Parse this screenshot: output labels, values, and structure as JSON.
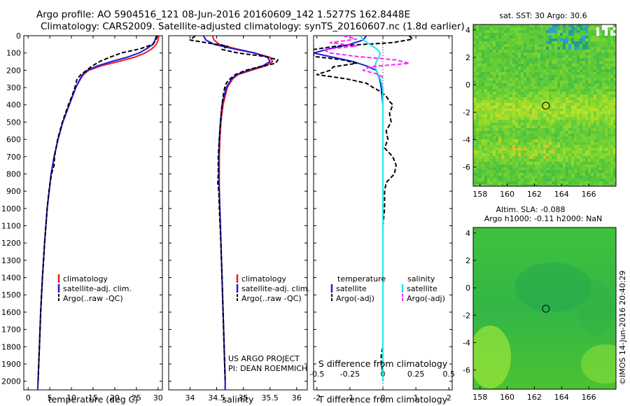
{
  "header": {
    "line1": "Argo profile: AO 5904516_121 08-Jun-2016 20160609_142 1.5277S 162.8448E",
    "line2": "Climatology: CARS2009. Satellite-adjusted climatology: synTS_20160607.nc (1.8d earlier)"
  },
  "colors": {
    "climatology": "#ee1c1c",
    "satellite": "#1a1ae6",
    "argo": "#000000",
    "satellite_salinity": "#20e6e6",
    "argo_salinity": "#ff22ff"
  },
  "chart_data": [
    {
      "type": "line",
      "id": "temperature_profile",
      "xlabel": "temperature (deg C)",
      "ylabel": "",
      "xlim": [
        -1,
        31
      ],
      "ylim": [
        2050,
        0
      ],
      "xticks": [
        "0",
        "5",
        "10",
        "15",
        "20",
        "25",
        "30"
      ],
      "yticks": [
        "0",
        "100",
        "200",
        "300",
        "400",
        "500",
        "600",
        "700",
        "800",
        "900",
        "1000",
        "1100",
        "1200",
        "1300",
        "1400",
        "1500",
        "1600",
        "1700",
        "1800",
        "1900",
        "2000"
      ],
      "legend": [
        "climatology",
        "satellite-adj. clim.",
        "Argo(..raw -QC)"
      ],
      "series": [
        {
          "name": "climatology",
          "depth": [
            0,
            25,
            50,
            75,
            100,
            125,
            150,
            175,
            200,
            225,
            250,
            300,
            400,
            500,
            600,
            700,
            800,
            1000,
            1200,
            1400,
            1600,
            1800,
            2000,
            2050
          ],
          "values": [
            30.2,
            30.0,
            29.6,
            28.6,
            27.0,
            24.5,
            20.8,
            16.8,
            14.0,
            12.8,
            12.1,
            11.0,
            9.5,
            8.0,
            6.9,
            6.0,
            5.3,
            4.4,
            3.8,
            3.3,
            2.9,
            2.6,
            2.3,
            2.2
          ]
        },
        {
          "name": "satellite-adj. clim.",
          "depth": [
            0,
            25,
            50,
            75,
            100,
            125,
            150,
            175,
            200,
            225,
            250,
            300,
            400,
            500,
            600,
            700,
            800,
            1000,
            1200,
            1400,
            1600,
            1800,
            2000,
            2050
          ],
          "values": [
            29.6,
            29.3,
            28.8,
            27.4,
            25.6,
            22.8,
            19.2,
            16.0,
            13.7,
            12.6,
            12.0,
            11.0,
            9.5,
            8.0,
            6.9,
            6.0,
            5.3,
            4.4,
            3.8,
            3.3,
            2.9,
            2.6,
            2.3,
            2.2
          ]
        },
        {
          "name": "Argo(..raw -QC)",
          "depth": [
            0,
            25,
            50,
            75,
            100,
            125,
            150,
            175,
            200,
            225,
            250,
            300,
            350,
            400,
            450,
            500,
            600,
            700,
            750,
            800,
            900,
            1000,
            1200,
            1400,
            1600,
            1800,
            2000
          ],
          "values": [
            29.8,
            29.5,
            28.8,
            26.0,
            21.5,
            18.8,
            16.5,
            14.8,
            13.5,
            12.2,
            11.3,
            10.8,
            10.1,
            9.3,
            8.6,
            7.9,
            6.8,
            6.1,
            6.0,
            5.4,
            4.8,
            4.4,
            3.8,
            3.3,
            2.9,
            2.6,
            2.3
          ]
        }
      ]
    },
    {
      "type": "line",
      "id": "salinity_profile",
      "xlabel": "salinity",
      "xlim": [
        33.6,
        36.2
      ],
      "ylim": [
        2050,
        0
      ],
      "xticks": [
        "34",
        "34.5",
        "35",
        "35.5",
        "36"
      ],
      "legend": [
        "climatology",
        "satellite-adj. clim.",
        "Argo(..raw -QC)"
      ],
      "credit": [
        "US ARGO PROJECT",
        "PI: DEAN ROEMMICH"
      ],
      "series": [
        {
          "name": "climatology",
          "depth": [
            0,
            25,
            50,
            75,
            100,
            125,
            150,
            175,
            200,
            225,
            250,
            300,
            400,
            500,
            600,
            700,
            800,
            900,
            1000,
            1200,
            1400,
            1600,
            1800,
            2000,
            2050
          ],
          "values": [
            34.42,
            34.45,
            34.55,
            34.85,
            35.22,
            35.5,
            35.55,
            35.42,
            35.15,
            34.9,
            34.8,
            34.7,
            34.62,
            34.58,
            34.56,
            34.55,
            34.55,
            34.55,
            34.56,
            34.58,
            34.6,
            34.62,
            34.64,
            34.66,
            34.66
          ]
        },
        {
          "name": "satellite-adj. clim.",
          "depth": [
            0,
            25,
            50,
            75,
            100,
            125,
            150,
            175,
            200,
            225,
            250,
            300,
            400,
            500,
            600,
            700,
            800,
            900,
            1000,
            1200,
            1400,
            1600,
            1800,
            2000,
            2050
          ],
          "values": [
            34.25,
            34.3,
            34.45,
            34.8,
            35.2,
            35.46,
            35.5,
            35.36,
            35.1,
            34.88,
            34.78,
            34.68,
            34.6,
            34.57,
            34.55,
            34.54,
            34.54,
            34.55,
            34.56,
            34.58,
            34.6,
            34.62,
            34.64,
            34.66,
            34.66
          ]
        },
        {
          "name": "Argo(..raw -QC)",
          "depth": [
            0,
            25,
            40,
            60,
            80,
            100,
            120,
            140,
            160,
            180,
            200,
            225,
            250,
            275,
            300,
            350,
            400,
            500,
            600,
            700,
            800,
            850,
            900,
            1000,
            1200,
            1400,
            1600,
            1800,
            2000
          ],
          "values": [
            34.1,
            34.0,
            34.3,
            34.7,
            34.6,
            34.9,
            35.4,
            35.65,
            35.6,
            35.3,
            35.05,
            34.85,
            34.75,
            34.68,
            34.65,
            34.62,
            34.6,
            34.57,
            34.55,
            34.53,
            34.53,
            34.52,
            34.54,
            34.55,
            34.58,
            34.6,
            34.62,
            34.64,
            34.66
          ]
        }
      ]
    },
    {
      "type": "line",
      "id": "difference_profile",
      "xlabel": "T difference from climatology",
      "xlabel2": "S difference from climatology",
      "xlim": [
        -2.1,
        2.1
      ],
      "ylim": [
        2050,
        0
      ],
      "xticks": [
        "-2",
        "-1",
        "0",
        "1",
        "2"
      ],
      "xticks2": [
        "-0.5",
        "-0.25",
        "0",
        "0.25",
        "0.5"
      ],
      "legend_headers": [
        "temperature",
        "salinity"
      ],
      "legend": [
        "satellite",
        "Argo(-adj)",
        "satellite",
        "Argo(-adj)"
      ],
      "series": [
        {
          "name": "satellite",
          "group": "temperature",
          "depth": [
            0,
            25,
            50,
            75,
            100,
            125,
            150,
            175,
            200,
            250,
            300,
            400,
            500,
            600,
            700,
            800,
            1000,
            1200,
            1400,
            1600,
            1800,
            2000
          ],
          "values": [
            -0.5,
            -0.6,
            -1.0,
            -1.6,
            -2.1,
            -1.5,
            -0.9,
            -0.5,
            -0.2,
            -0.1,
            -0.05,
            0,
            0,
            0,
            0,
            0,
            0,
            0,
            0,
            0,
            0,
            0
          ]
        },
        {
          "name": "Argo(-adj)",
          "group": "temperature",
          "depth": [
            0,
            20,
            40,
            60,
            80,
            100,
            120,
            140,
            160,
            180,
            200,
            225,
            250,
            275,
            300,
            320,
            350,
            380,
            400,
            450,
            500,
            550,
            600,
            650,
            700,
            750,
            800,
            850,
            900,
            950,
            1000,
            1100,
            1200,
            1400,
            1600,
            1800,
            1850,
            1900,
            1950,
            2000
          ],
          "values": [
            0.8,
            0.9,
            0.3,
            -1.4,
            -2.1,
            -2.1,
            -2.1,
            -1.2,
            -0.8,
            -1.5,
            -1.6,
            -2.0,
            -1.1,
            -0.5,
            -0.3,
            -0.1,
            0.1,
            0.2,
            0.3,
            0.2,
            0.25,
            0.1,
            0.15,
            0.05,
            0.3,
            0.4,
            0.35,
            0.1,
            0.05,
            0.05,
            0.05,
            0.0,
            0.0,
            0.0,
            0.0,
            0.0,
            -0.05,
            -0.05,
            0.0,
            0.0
          ]
        },
        {
          "name": "satellite",
          "group": "salinity",
          "depth": [
            0,
            25,
            50,
            75,
            100,
            125,
            150,
            175,
            200,
            250,
            300,
            400,
            500,
            600,
            700,
            800,
            1000,
            1200,
            1400,
            1600,
            1800,
            2000
          ],
          "values": [
            -0.17,
            -0.15,
            -0.1,
            -0.05,
            -0.02,
            -0.03,
            -0.05,
            -0.06,
            -0.05,
            -0.02,
            0,
            0,
            0,
            0,
            0,
            0,
            0,
            0,
            0,
            0,
            0,
            0
          ]
        },
        {
          "name": "Argo(-adj)",
          "group": "salinity",
          "depth": [
            0,
            20,
            40,
            60,
            80,
            100,
            120,
            140,
            160,
            180,
            200,
            220,
            240
          ],
          "values": [
            -0.3,
            -0.2,
            -0.4,
            -0.2,
            -0.45,
            -0.4,
            -0.2,
            0.1,
            0.2,
            -0.1,
            -0.15,
            -0.05,
            0
          ]
        }
      ]
    },
    {
      "type": "heatmap",
      "id": "sst_map",
      "title": "sat. SST: 30 Argo: 30.6",
      "xlim": [
        157.5,
        168
      ],
      "ylim": [
        -7.4,
        4.4
      ],
      "xticks": [
        "158",
        "160",
        "162",
        "164",
        "166"
      ],
      "yticks": [
        "4",
        "2",
        "0",
        "-2",
        "-4",
        "-6"
      ],
      "argo_position": {
        "lon": 162.8448,
        "lat": -1.5277
      }
    },
    {
      "type": "heatmap",
      "id": "sla_map",
      "title": "Altim. SLA: -0.088",
      "subtitle": "Argo h1000: -0.11 h2000: NaN",
      "xlim": [
        157.5,
        168
      ],
      "ylim": [
        -7.4,
        4.4
      ],
      "xticks": [
        "158",
        "160",
        "162",
        "164",
        "166"
      ],
      "yticks": [
        "4",
        "2",
        "0",
        "-2",
        "-4",
        "-6"
      ],
      "argo_position": {
        "lon": 162.8448,
        "lat": -1.5277
      }
    }
  ],
  "footer": {
    "credit": "©IMOS 14-Jun-2016 20:40:29"
  }
}
